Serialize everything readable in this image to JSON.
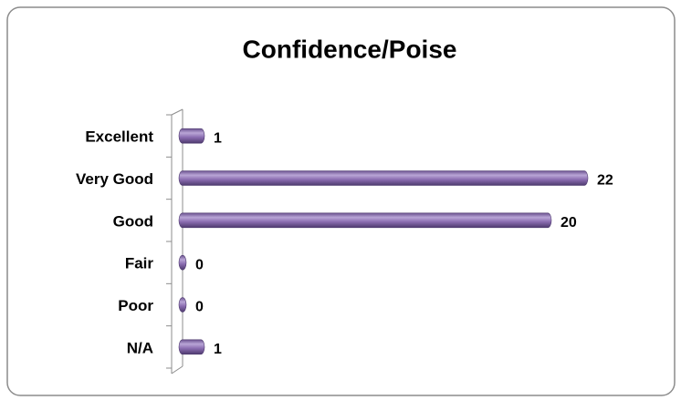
{
  "chart_data": {
    "type": "bar",
    "orientation": "horizontal",
    "title": "Confidence/Poise",
    "categories": [
      "Excellent",
      "Very Good",
      "Good",
      "Fair",
      "Poor",
      "N/A"
    ],
    "values": [
      1,
      22,
      20,
      0,
      0,
      1
    ],
    "color": "#8064a2",
    "xlim": [
      0,
      25
    ]
  }
}
